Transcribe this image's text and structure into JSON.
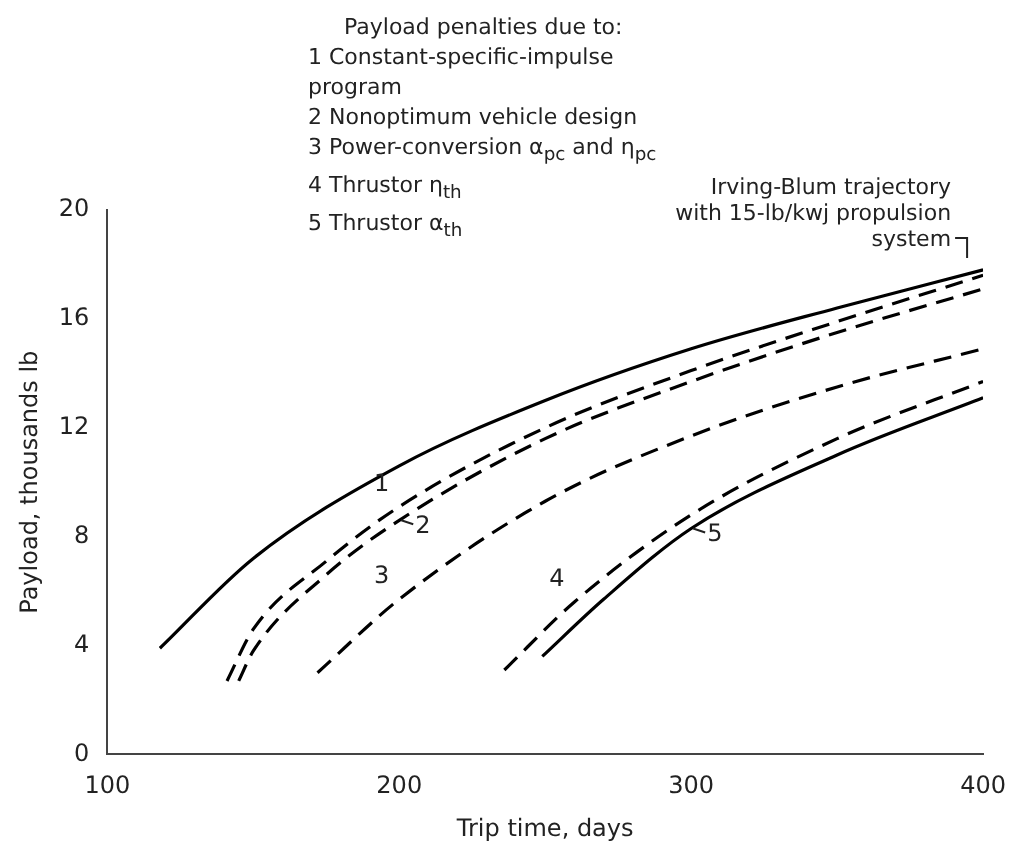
{
  "chart_data": {
    "type": "line",
    "xlabel": "Trip time, days",
    "ylabel": "Payload, thousands lb",
    "xlim": [
      100,
      400
    ],
    "xticks": [
      100,
      200,
      300,
      400
    ],
    "ylim": [
      0,
      20
    ],
    "yticks": [
      0,
      4,
      8,
      12,
      16,
      20
    ],
    "grid": false,
    "legend": false,
    "marker": "none",
    "series": [
      {
        "color": "#000000",
        "line_style": "solid",
        "x": [
          118,
          150,
          200,
          250,
          300,
          350,
          400
        ],
        "values": [
          3.9,
          7.2,
          10.6,
          13,
          14.9,
          16.4,
          17.8
        ]
      },
      {
        "color": "#000000",
        "line_style": "dashed",
        "x": [
          141,
          150,
          175,
          200,
          250,
          300,
          350,
          400
        ],
        "values": [
          2.7,
          4.6,
          7.1,
          9.1,
          12,
          14.1,
          15.9,
          17.6
        ]
      },
      {
        "color": "#000000",
        "line_style": "dashed",
        "x": [
          145,
          150,
          175,
          200,
          250,
          300,
          350,
          400
        ],
        "values": [
          2.7,
          3.8,
          6.6,
          8.6,
          11.6,
          13.7,
          15.5,
          17.1
        ]
      },
      {
        "color": "#000000",
        "line_style": "dashed",
        "x": [
          172,
          200,
          250,
          300,
          350,
          400
        ],
        "values": [
          3,
          5.7,
          9.3,
          11.7,
          13.5,
          14.9
        ]
      },
      {
        "color": "#000000",
        "line_style": "dashed",
        "x": [
          236,
          260,
          300,
          350,
          400
        ],
        "values": [
          3.1,
          5.6,
          8.8,
          11.6,
          13.7
        ]
      },
      {
        "color": "#000000",
        "line_style": "solid",
        "x": [
          249,
          270,
          300,
          350,
          400
        ],
        "values": [
          3.6,
          5.7,
          8.3,
          11,
          13.1
        ]
      }
    ],
    "annotations": [
      "Payload penalties due to:",
      "1  Constant-specific-impulse program",
      "2  Nonoptimum vehicle design",
      "3  Power-conversion α$_{pc}$ and η$_{pc}$",
      "4  Thrustor η$_{th}$",
      "5  Thrustor α$_{th}$",
      {
        "text": "Irving-Blum trajectory with 15-lb/kwj propulsion system",
        "x": 400,
        "y": 17.8
      },
      {
        "text": "1",
        "x": 200,
        "y": 9.1
      },
      {
        "text": "2",
        "x": 200,
        "y": 8.6
      },
      {
        "text": "3",
        "x": 200,
        "y": 5.7
      },
      {
        "text": "4",
        "x": 260,
        "y": 5.6
      },
      {
        "text": "5",
        "x": 300,
        "y": 8.3
      }
    ]
  }
}
